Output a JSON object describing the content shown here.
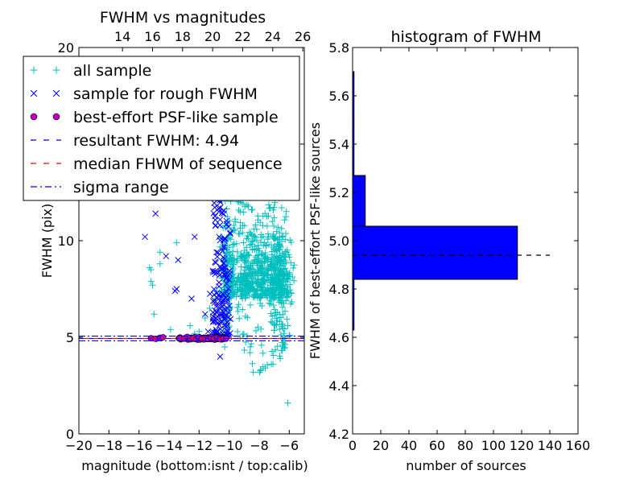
{
  "chart_data": [
    {
      "type": "scatter",
      "title": "FWHM vs magnitudes",
      "xlabel": "magnitude (bottom:isnt / top:calib)",
      "ylabel": "FWHM (pix)",
      "xlim": [
        -20,
        -5
      ],
      "ylim": [
        0,
        20
      ],
      "xticks": [
        -20,
        -18,
        -16,
        -14,
        -12,
        -10,
        -8,
        -6
      ],
      "xtick_labels": [
        "−20",
        "−18",
        "−16",
        "−14",
        "−12",
        "−10",
        "−8",
        "−6"
      ],
      "yticks": [
        0,
        5,
        10,
        15,
        20
      ],
      "ytick_labels": [
        "0",
        "5",
        "10",
        "",
        "20"
      ],
      "top_xticks": [
        14,
        16,
        18,
        20,
        22,
        24,
        26
      ],
      "top_xtick_labels": [
        "14",
        "16",
        "18",
        "20",
        "22",
        "24",
        "26"
      ],
      "top_axis_offset": 31.1,
      "legend_position": "upper-left",
      "series": [
        {
          "name": "all sample",
          "marker": "+",
          "color": "#00bfbf"
        },
        {
          "name": "sample for rough FWHM",
          "marker": "x",
          "color": "#0000ff"
        },
        {
          "name": "best-effort PSF-like sample",
          "marker": "o",
          "color": "#bf00bf"
        }
      ],
      "lines": [
        {
          "name": "resultant FWHM: 4.94",
          "style": "dashed",
          "color": "#0000ff",
          "y": 4.94
        },
        {
          "name": "median FHWM of sequence",
          "style": "dashed",
          "color": "#ff0000",
          "y": 4.94
        },
        {
          "name": "sigma range",
          "style": "dashdot",
          "color": "#0000ff",
          "y": [
            4.82,
            5.06
          ]
        }
      ],
      "sample_points": {
        "all": [
          [
            -15.3,
            8.6
          ],
          [
            -15.2,
            8.5
          ],
          [
            -15.2,
            7.9
          ],
          [
            -15.1,
            7.7
          ],
          [
            -14.6,
            9.4
          ],
          [
            -14.6,
            8.8
          ],
          [
            -15.0,
            6.2
          ],
          [
            -14.8,
            4.9
          ],
          [
            -13.9,
            5.4
          ],
          [
            -13.5,
            9.9
          ],
          [
            -12.6,
            5.6
          ],
          [
            -12.3,
            5.2
          ],
          [
            -12.0,
            5.3
          ],
          [
            -11.6,
            6.0
          ],
          [
            -11.3,
            6.5
          ],
          [
            -10.9,
            7.0
          ],
          [
            -10.7,
            5.2
          ],
          [
            -10.5,
            7.4
          ],
          [
            -10.3,
            4.5
          ],
          [
            -10.4,
            5.9
          ],
          [
            -6.1,
            1.6
          ],
          [
            -6.6,
            3.9
          ],
          [
            -7.6,
            3.4
          ],
          [
            -8.4,
            3.2
          ],
          [
            -9.0,
            16.2
          ],
          [
            -8.8,
            18.5
          ],
          [
            -7.6,
            19.4
          ],
          [
            -7.2,
            12.8
          ]
        ],
        "rough": [
          [
            -15.6,
            10.2
          ],
          [
            -14.9,
            11.4
          ],
          [
            -14.2,
            9.2
          ],
          [
            -13.4,
            9.0
          ],
          [
            -13.6,
            7.4
          ],
          [
            -13.5,
            7.5
          ],
          [
            -12.5,
            7.0
          ],
          [
            -12.3,
            10.2
          ],
          [
            -11.6,
            6.2
          ],
          [
            -11.4,
            5.3
          ],
          [
            -11.0,
            7.2
          ],
          [
            -10.9,
            10.8
          ],
          [
            -10.8,
            12.1
          ],
          [
            -10.7,
            13.9
          ],
          [
            -10.6,
            11.7
          ],
          [
            -10.6,
            4.0
          ],
          [
            -11.3,
            5.0
          ]
        ],
        "psf": [
          [
            -15.2,
            4.95
          ],
          [
            -14.9,
            4.92
          ],
          [
            -14.6,
            4.98
          ],
          [
            -14.4,
            5.0
          ],
          [
            -13.3,
            4.96
          ],
          [
            -13.0,
            4.93
          ],
          [
            -12.8,
            5.02
          ],
          [
            -12.6,
            4.95
          ],
          [
            -12.4,
            4.97
          ],
          [
            -12.2,
            4.9
          ],
          [
            -12.0,
            5.0
          ],
          [
            -11.8,
            4.94
          ],
          [
            -11.6,
            4.96
          ],
          [
            -11.4,
            4.92
          ],
          [
            -11.2,
            5.0
          ],
          [
            -11.0,
            4.95
          ],
          [
            -10.8,
            4.98
          ],
          [
            -10.6,
            4.9
          ],
          [
            -10.4,
            4.96
          ],
          [
            -10.2,
            4.93
          ]
        ]
      },
      "cloud": {
        "rough_vertical": [
          [
            -10.9,
            5.2,
            14.3
          ],
          [
            -10.6,
            5.0,
            15.5
          ],
          [
            -10.2,
            5.0,
            12.0
          ]
        ],
        "all_cloud": [
          [
            -10.0,
            5.0,
            19.5
          ],
          [
            -9.0,
            4.0,
            18.0
          ],
          [
            -8.0,
            3.0,
            17.0
          ],
          [
            -7.0,
            3.5,
            12.0
          ],
          [
            -6.5,
            4.0,
            8.0
          ]
        ]
      }
    },
    {
      "type": "bar",
      "orientation": "horizontal",
      "title": "histogram of FWHM",
      "xlabel": "number of sources",
      "ylabel": "FWHM of best-effort PSF-like sources",
      "xlim": [
        0,
        160
      ],
      "ylim": [
        4.2,
        5.8
      ],
      "xticks": [
        0,
        20,
        40,
        60,
        80,
        100,
        120,
        140,
        160
      ],
      "xtick_labels": [
        "0",
        "20",
        "40",
        "60",
        "80",
        "100",
        "120",
        "140",
        "160"
      ],
      "yticks": [
        4.2,
        4.4,
        4.6,
        4.8,
        5.0,
        5.2,
        5.4,
        5.6,
        5.8
      ],
      "ytick_labels": [
        "4.2",
        "4.4",
        "4.6",
        "4.8",
        "5.0",
        "5.2",
        "5.4",
        "5.6",
        "5.8"
      ],
      "bar_color": "#0000ff",
      "bins": [
        {
          "low": 4.63,
          "high": 4.84,
          "count": 1
        },
        {
          "low": 4.84,
          "high": 5.06,
          "count": 117
        },
        {
          "low": 5.06,
          "high": 5.27,
          "count": 9
        },
        {
          "low": 5.27,
          "high": 5.49,
          "count": 1
        },
        {
          "low": 5.49,
          "high": 5.7,
          "count": 1
        }
      ],
      "median_line": {
        "y": 4.94,
        "x_range": [
          0,
          140
        ],
        "style": "dashed",
        "color": "#000000"
      }
    }
  ]
}
